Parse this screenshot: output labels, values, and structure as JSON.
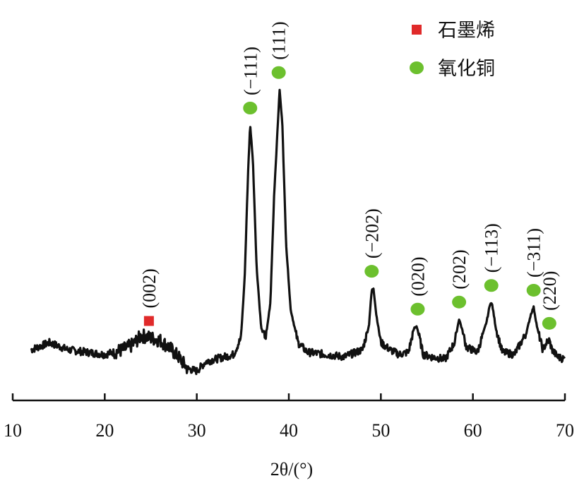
{
  "chart_data": {
    "type": "line",
    "title": "",
    "xlabel": "2θ/(°)",
    "ylabel": "",
    "xlim": [
      10,
      70
    ],
    "x_ticks": [
      10,
      20,
      30,
      40,
      50,
      60,
      70
    ],
    "y_axis_shown": false,
    "grid": false,
    "legend_position": "top-right",
    "series": [
      {
        "x": [
          12,
          14,
          16,
          18,
          20,
          22,
          23,
          24,
          25,
          26,
          27,
          28,
          29,
          30,
          31,
          32,
          33,
          34,
          34.8,
          35.2,
          35.6,
          35.8,
          36.1,
          36.5,
          37,
          37.5,
          38,
          38.4,
          38.8,
          39.0,
          39.3,
          39.7,
          40.2,
          41,
          42,
          44,
          46,
          48,
          48.7,
          49.0,
          49.2,
          49.5,
          50,
          51,
          52,
          53,
          53.6,
          53.9,
          54.2,
          54.6,
          55.5,
          57,
          58.0,
          58.5,
          58.8,
          59.3,
          60.5,
          61.5,
          61.9,
          62.1,
          62.5,
          63.2,
          64.5,
          65.8,
          66.3,
          66.6,
          67.0,
          67.6,
          68.0,
          68.3,
          68.6,
          69.2,
          70
        ],
        "y": [
          5,
          8,
          5,
          4,
          3,
          5,
          7,
          11,
          10,
          9,
          6,
          2,
          -3,
          -4,
          0,
          1,
          2,
          3,
          10,
          35,
          83,
          100,
          85,
          40,
          14,
          10,
          25,
          70,
          100,
          115,
          100,
          50,
          22,
          8,
          4,
          3,
          2,
          5,
          15,
          30,
          31,
          20,
          8,
          5,
          3,
          4,
          14,
          15,
          10,
          3,
          2,
          1,
          8,
          18,
          14,
          6,
          4,
          17,
          25,
          24,
          14,
          4,
          3,
          12,
          20,
          23,
          14,
          5,
          8,
          9,
          5,
          2,
          1
        ]
      }
    ],
    "peak_labels": [
      {
        "hkl": "(002)",
        "x": 24.8,
        "y": 10,
        "phase": "石墨烯"
      },
      {
        "hkl": "(−111)",
        "x": 35.8,
        "y": 100,
        "phase": "氧化铜"
      },
      {
        "hkl": "(111)",
        "x": 38.9,
        "y": 115,
        "phase": "氧化铜"
      },
      {
        "hkl": "(−202)",
        "x": 49.0,
        "y": 31,
        "phase": "氧化铜"
      },
      {
        "hkl": "(020)",
        "x": 54.0,
        "y": 15,
        "phase": "氧化铜"
      },
      {
        "hkl": "(202)",
        "x": 58.5,
        "y": 18,
        "phase": "氧化铜"
      },
      {
        "hkl": "(−113)",
        "x": 62.0,
        "y": 25,
        "phase": "氧化铜"
      },
      {
        "hkl": "(−311)",
        "x": 66.6,
        "y": 23,
        "phase": "氧化铜"
      },
      {
        "hkl": "(220)",
        "x": 68.3,
        "y": 9,
        "phase": "氧化铜"
      }
    ],
    "legend": [
      {
        "label": "石墨烯",
        "marker": "square",
        "color": "#e02a2a"
      },
      {
        "label": "氧化铜",
        "marker": "circle",
        "color": "#6cc02e"
      }
    ],
    "colors": {
      "line": "#111111",
      "graphene": "#e02a2a",
      "copper_oxide": "#6cc02e"
    }
  }
}
